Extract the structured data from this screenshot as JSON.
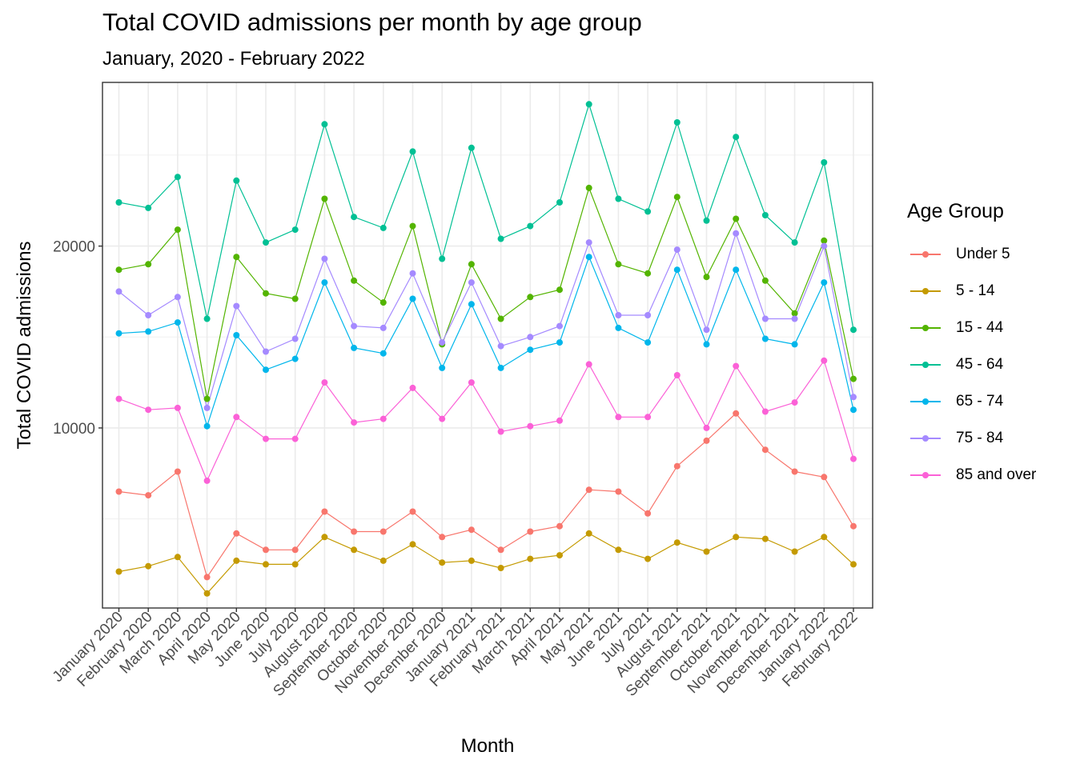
{
  "title": "Total COVID admissions per month by age group",
  "subtitle": "January, 2020 - February 2022",
  "chart_data": {
    "type": "line",
    "title": "Total COVID admissions per month by age group",
    "subtitle": "January, 2020 - February 2022",
    "xlabel": "Month",
    "ylabel": "Total COVID admissions",
    "ylim": [
      100,
      29000
    ],
    "yticks": [
      10000,
      20000
    ],
    "grid": true,
    "legend_title": "Age Group",
    "legend_position": "right",
    "categories": [
      "January 2020",
      "February 2020",
      "March 2020",
      "April 2020",
      "May 2020",
      "June 2020",
      "July 2020",
      "August 2020",
      "September 2020",
      "October 2020",
      "November 2020",
      "December 2020",
      "January 2021",
      "February 2021",
      "March 2021",
      "April 2021",
      "May 2021",
      "June 2021",
      "July 2021",
      "August 2021",
      "September 2021",
      "October 2021",
      "November 2021",
      "December 2021",
      "January 2022",
      "February 2022"
    ],
    "series": [
      {
        "name": "Under 5",
        "color": "#F8766D",
        "values": [
          6500,
          6300,
          7600,
          1800,
          4200,
          3300,
          3300,
          5400,
          4300,
          4300,
          5400,
          4000,
          4400,
          3300,
          4300,
          4600,
          6600,
          6500,
          5300,
          7900,
          9300,
          10800,
          8800,
          7600,
          7300,
          4600
        ]
      },
      {
        "name": "5 - 14",
        "color": "#C49A00",
        "values": [
          2100,
          2400,
          2900,
          900,
          2700,
          2500,
          2500,
          4000,
          3300,
          2700,
          3600,
          2600,
          2700,
          2300,
          2800,
          3000,
          4200,
          3300,
          2800,
          3700,
          3200,
          4000,
          3900,
          3200,
          4000,
          2500
        ]
      },
      {
        "name": "15 - 44",
        "color": "#53B400",
        "values": [
          18700,
          19000,
          20900,
          11600,
          19400,
          17400,
          17100,
          22600,
          18100,
          16900,
          21100,
          14600,
          19000,
          16000,
          17200,
          17600,
          23200,
          19000,
          18500,
          22700,
          18300,
          21500,
          18100,
          16300,
          20300,
          12700
        ]
      },
      {
        "name": "45 - 64",
        "color": "#00C094",
        "values": [
          22400,
          22100,
          23800,
          16000,
          23600,
          20200,
          20900,
          26700,
          21600,
          21000,
          25200,
          19300,
          25400,
          20400,
          21100,
          22400,
          27800,
          22600,
          21900,
          26800,
          21400,
          26000,
          21700,
          20200,
          24600,
          15400
        ]
      },
      {
        "name": "65 - 74",
        "color": "#00B6EB",
        "values": [
          15200,
          15300,
          15800,
          10100,
          15100,
          13200,
          13800,
          18000,
          14400,
          14100,
          17100,
          13300,
          16800,
          13300,
          14300,
          14700,
          19400,
          15500,
          14700,
          18700,
          14600,
          18700,
          14900,
          14600,
          18000,
          11000
        ]
      },
      {
        "name": "75 - 84",
        "color": "#A58AFF",
        "values": [
          17500,
          16200,
          17200,
          11100,
          16700,
          14200,
          14900,
          19300,
          15600,
          15500,
          18500,
          14700,
          18000,
          14500,
          15000,
          15600,
          20200,
          16200,
          16200,
          19800,
          15400,
          20700,
          16000,
          16000,
          20000,
          11700
        ]
      },
      {
        "name": "85 and over",
        "color": "#FB61D7",
        "values": [
          11600,
          11000,
          11100,
          7100,
          10600,
          9400,
          9400,
          12500,
          10300,
          10500,
          12200,
          10500,
          12500,
          9800,
          10100,
          10400,
          13500,
          10600,
          10600,
          12900,
          10000,
          13400,
          10900,
          11400,
          13700,
          8300
        ]
      }
    ]
  }
}
